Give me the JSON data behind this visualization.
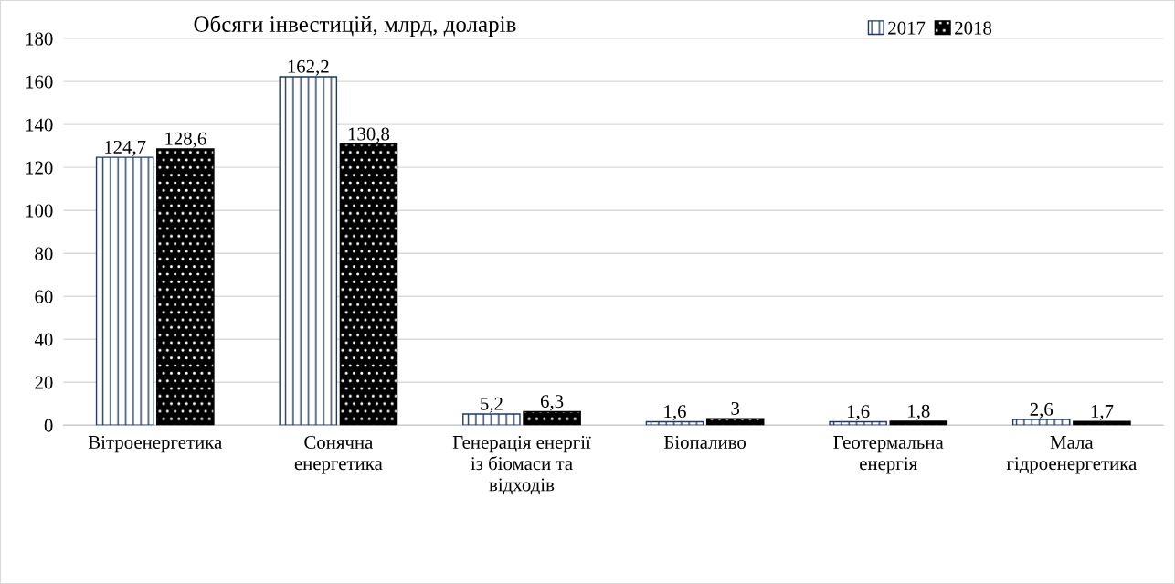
{
  "chart_data": {
    "type": "bar",
    "title": "Обсяги інвестицій, млрд, доларів",
    "categories": [
      "Вітроенергетика",
      "Сонячна\nенергетика",
      "Генерація енергії\nіз біомаси та\nвідходів",
      "Біопаливо",
      "Геотермальна\nенергія",
      "Мала\nгідроенергетика"
    ],
    "series": [
      {
        "name": "2017",
        "color": "#1f3864",
        "values": [
          124.7,
          162.2,
          5.2,
          1.6,
          1.6,
          2.6
        ],
        "value_labels": [
          "124,7",
          "162,2",
          "5,2",
          "1,6",
          "1,6",
          "2,6"
        ]
      },
      {
        "name": "2018",
        "color": "#000000",
        "values": [
          128.6,
          130.8,
          6.3,
          3,
          1.8,
          1.7
        ],
        "value_labels": [
          "128,6",
          "130,8",
          "6,3",
          "3",
          "1,8",
          "1,7"
        ]
      }
    ],
    "ylim": [
      0,
      180
    ],
    "yticks": [
      0,
      20,
      40,
      60,
      80,
      100,
      120,
      140,
      160,
      180
    ],
    "grid": "y",
    "legend": "top right"
  }
}
